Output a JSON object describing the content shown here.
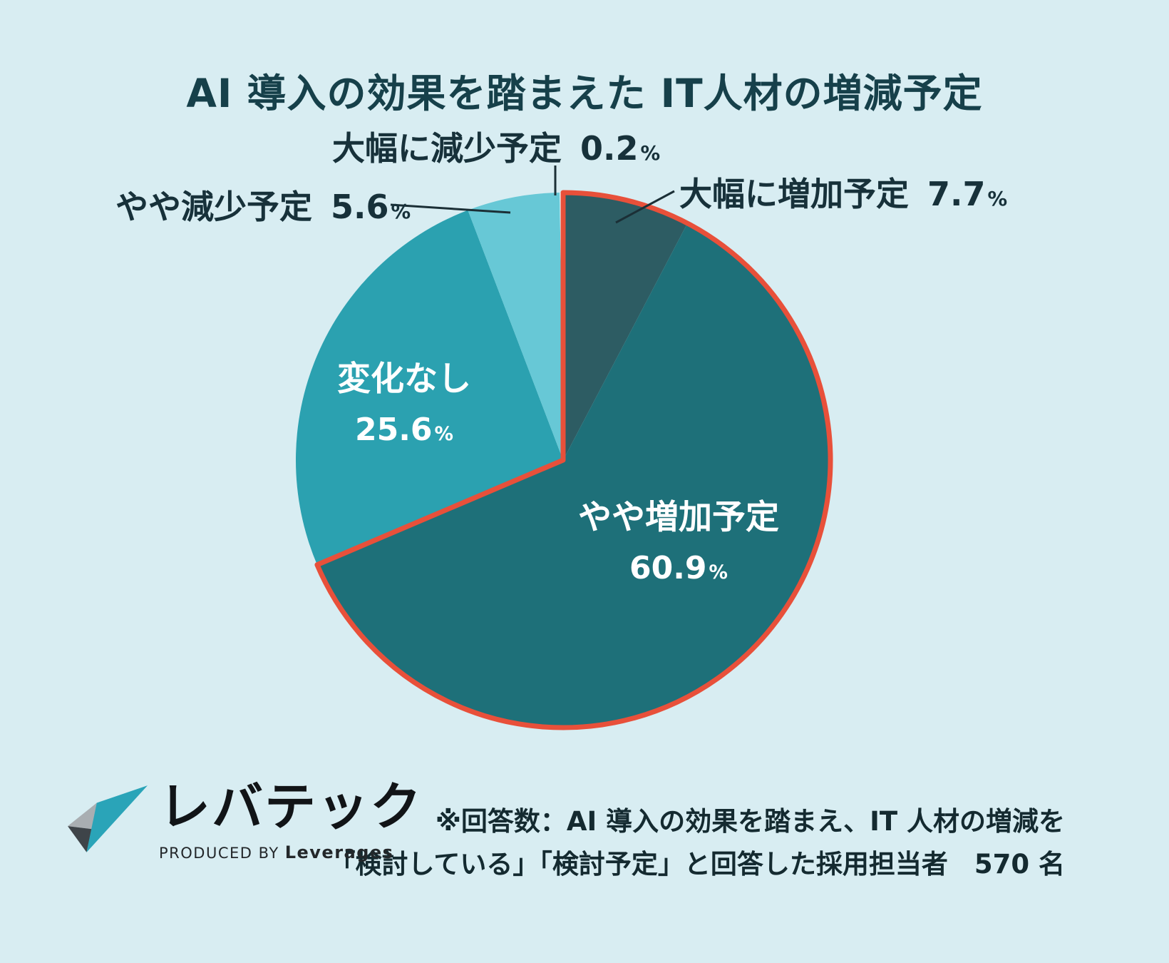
{
  "page": {
    "title": "AI 導入の効果を踏まえた IT人材の増減予定",
    "background_color": "#d8edf2"
  },
  "chart_data": {
    "type": "pie",
    "title": "AI 導入の効果を踏まえた IT人材の増減予定",
    "unit": "%",
    "start_angle_deg": 0,
    "direction": "clockwise",
    "highlight_outline_color": "#e8503a",
    "highlight_group": [
      "大幅に増加予定",
      "やや増加予定"
    ],
    "slices": [
      {
        "label": "大幅に増加予定",
        "value": 7.7,
        "color": "#2d5c63",
        "label_position": "outside-right",
        "highlighted": true
      },
      {
        "label": "やや増加予定",
        "value": 60.9,
        "color": "#1e7079",
        "label_position": "inside",
        "highlighted": true
      },
      {
        "label": "変化なし",
        "value": 25.6,
        "color": "#2ba1b0",
        "label_position": "inside",
        "highlighted": false
      },
      {
        "label": "やや減少予定",
        "value": 5.6,
        "color": "#67c8d6",
        "label_position": "outside-left",
        "highlighted": false
      },
      {
        "label": "大幅に減少予定",
        "value": 0.2,
        "color": "#ffffff",
        "label_position": "outside-top",
        "highlighted": false
      }
    ]
  },
  "footer": {
    "logo_text": "レバテック",
    "logo_produced_by": "PRODUCED BY",
    "logo_company": "Leverages",
    "note_line1": "※回答数：AI 導入の効果を踏まえ、IT 人材の増減を",
    "note_line2": "「検討している」「検討予定」と回答した採用担当者　570 名"
  }
}
